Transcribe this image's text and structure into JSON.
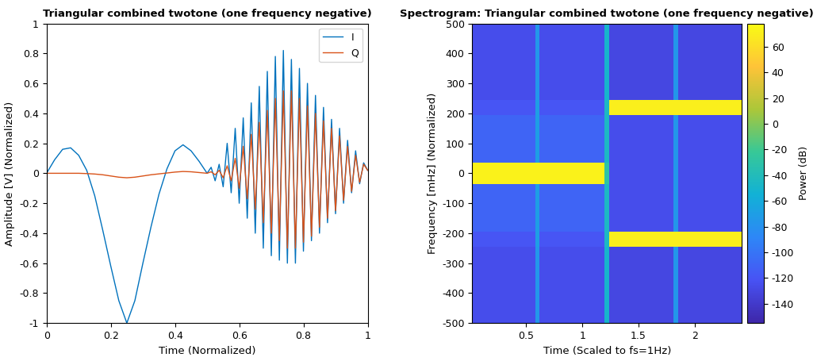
{
  "chart_data": [
    {
      "type": "line",
      "title": "Triangular combined twotone (one frequency negative)",
      "x_label": "Time (Normalized)",
      "y_label": "Amplitude [V] (Normalized)",
      "x": [
        0,
        0.025,
        0.05,
        0.075,
        0.1,
        0.125,
        0.15,
        0.175,
        0.2,
        0.225,
        0.25,
        0.275,
        0.3,
        0.325,
        0.35,
        0.375,
        0.4,
        0.425,
        0.45,
        0.475,
        0.5,
        0.5125,
        0.525,
        0.5375,
        0.55,
        0.5625,
        0.575,
        0.5875,
        0.6,
        0.6125,
        0.625,
        0.6375,
        0.65,
        0.6625,
        0.675,
        0.6875,
        0.7,
        0.7125,
        0.725,
        0.7375,
        0.75,
        0.7625,
        0.775,
        0.7875,
        0.8,
        0.8125,
        0.825,
        0.8375,
        0.85,
        0.8625,
        0.875,
        0.8875,
        0.9,
        0.9125,
        0.925,
        0.9375,
        0.95,
        0.9625,
        0.975,
        0.9875,
        1.0
      ],
      "series": [
        {
          "name": "I",
          "color": "#0072bd",
          "values": [
            0,
            0.09,
            0.16,
            0.17,
            0.12,
            0.02,
            -0.15,
            -0.38,
            -0.62,
            -0.85,
            -1.0,
            -0.85,
            -0.6,
            -0.36,
            -0.14,
            0.03,
            0.15,
            0.19,
            0.15,
            0.08,
            0.0,
            0.04,
            -0.05,
            0.06,
            -0.09,
            0.2,
            -0.13,
            0.3,
            -0.2,
            0.37,
            -0.3,
            0.47,
            -0.4,
            0.58,
            -0.5,
            0.68,
            -0.55,
            0.78,
            -0.58,
            0.82,
            -0.6,
            0.76,
            -0.6,
            0.7,
            -0.52,
            0.6,
            -0.45,
            0.52,
            -0.4,
            0.44,
            -0.33,
            0.36,
            -0.27,
            0.3,
            -0.2,
            0.22,
            -0.13,
            0.15,
            -0.07,
            0.07,
            0.02
          ]
        },
        {
          "name": "Q",
          "color": "#d95319",
          "values": [
            0,
            0,
            0,
            0,
            0,
            -0.002,
            -0.005,
            -0.01,
            -0.018,
            -0.026,
            -0.03,
            -0.026,
            -0.018,
            -0.01,
            -0.004,
            0.002,
            0.008,
            0.012,
            0.01,
            0.005,
            0,
            0.01,
            -0.01,
            0.02,
            -0.03,
            0.05,
            -0.05,
            0.1,
            -0.1,
            0.18,
            -0.17,
            0.26,
            -0.24,
            0.34,
            -0.33,
            0.42,
            -0.4,
            0.5,
            -0.45,
            0.55,
            -0.5,
            0.55,
            -0.5,
            0.5,
            -0.46,
            0.45,
            -0.42,
            0.4,
            -0.36,
            0.35,
            -0.3,
            0.3,
            -0.25,
            0.25,
            -0.18,
            0.18,
            -0.12,
            0.12,
            -0.06,
            0.06,
            0.02
          ]
        }
      ],
      "xlim": [
        0,
        1
      ],
      "xticks": [
        0,
        0.2,
        0.4,
        0.6,
        0.8,
        1
      ],
      "ylim": [
        -1,
        1
      ],
      "yticks": [
        -1,
        -0.8,
        -0.6,
        -0.4,
        -0.2,
        0,
        0.2,
        0.4,
        0.6,
        0.8,
        1
      ],
      "legend": "upper right",
      "grid": false
    },
    {
      "type": "heatmap",
      "title": "Spectrogram: Triangular combined twotone (one frequency negative)",
      "x_label": "Time (Scaled to fs=1Hz)",
      "y_label": "Frequency [mHz] (Normalized)",
      "x_edges": [
        0.02,
        0.58,
        0.62,
        1.2,
        1.24,
        1.81,
        1.85,
        2.42
      ],
      "y_edges": [
        -500,
        -245,
        -195,
        -35,
        35,
        195,
        245,
        500
      ],
      "cells": [
        [
          -125,
          -75,
          -125,
          -50,
          -130,
          -75,
          -130
        ],
        [
          -120,
          -70,
          -120,
          -45,
          70,
          70,
          70
        ],
        [
          -110,
          -70,
          -110,
          -45,
          -125,
          -75,
          -125
        ],
        [
          72,
          72,
          72,
          -30,
          -125,
          -75,
          -125
        ],
        [
          -110,
          -70,
          -110,
          -45,
          -125,
          -75,
          -125
        ],
        [
          -120,
          -70,
          -120,
          -45,
          70,
          70,
          70
        ],
        [
          -125,
          -75,
          -125,
          -50,
          -130,
          -75,
          -130
        ]
      ],
      "xlim": [
        0.02,
        2.42
      ],
      "xticks": [
        0.5,
        1,
        1.5,
        2
      ],
      "ylim": [
        -500,
        500
      ],
      "yticks": [
        -500,
        -400,
        -300,
        -200,
        -100,
        0,
        100,
        200,
        300,
        400,
        500
      ],
      "colorbar": {
        "label": "Power (dB)",
        "range": [
          -155,
          78
        ],
        "ticks": [
          -140,
          -120,
          -100,
          -80,
          -60,
          -40,
          -20,
          0,
          20,
          40,
          60
        ]
      }
    }
  ]
}
